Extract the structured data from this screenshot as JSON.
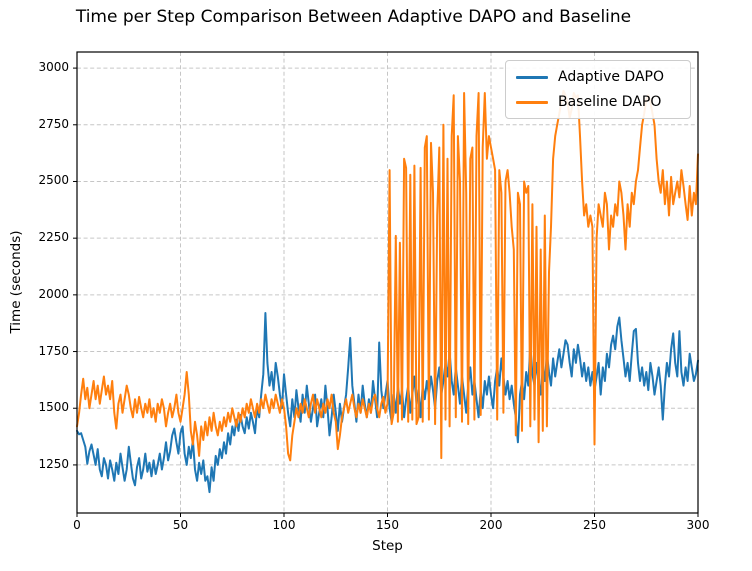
{
  "figure": {
    "title": "Time per Step Comparison Between Adaptive DAPO and Baseline",
    "xlabel": "Step",
    "ylabel": "Time (seconds)"
  },
  "legend": {
    "position": "upper right",
    "items": [
      {
        "label": "Adaptive DAPO",
        "color": "#1f77b4"
      },
      {
        "label": "Baseline DAPO",
        "color": "#ff7f0e"
      }
    ]
  },
  "chart_data": {
    "type": "line",
    "title": "Time per Step Comparison Between Adaptive DAPO and Baseline",
    "xlabel": "Step",
    "ylabel": "Time (seconds)",
    "x_ticks": [
      0,
      50,
      100,
      150,
      200,
      250,
      300
    ],
    "y_ticks": [
      1250,
      1500,
      1750,
      2000,
      2250,
      2500,
      2750,
      3000
    ],
    "xlim": [
      0,
      300
    ],
    "ylim": [
      1038,
      3071
    ],
    "grid": true,
    "grid_style": "dashed",
    "legend_position": "upper right",
    "x_start": 0,
    "x_step": 1,
    "points_per_series": 301,
    "series": [
      {
        "name": "Adaptive DAPO",
        "color": "#1f77b4",
        "values": [
          1400,
          1385,
          1390,
          1360,
          1330,
          1255,
          1310,
          1340,
          1295,
          1250,
          1320,
          1230,
          1200,
          1280,
          1250,
          1190,
          1270,
          1230,
          1180,
          1260,
          1210,
          1300,
          1240,
          1180,
          1230,
          1330,
          1260,
          1190,
          1160,
          1240,
          1280,
          1190,
          1230,
          1300,
          1220,
          1260,
          1200,
          1270,
          1210,
          1250,
          1300,
          1230,
          1280,
          1350,
          1270,
          1310,
          1380,
          1410,
          1350,
          1300,
          1390,
          1420,
          1300,
          1250,
          1330,
          1280,
          1360,
          1230,
          1180,
          1260,
          1210,
          1270,
          1180,
          1200,
          1130,
          1240,
          1180,
          1290,
          1250,
          1320,
          1280,
          1350,
          1300,
          1390,
          1340,
          1420,
          1380,
          1450,
          1400,
          1470,
          1420,
          1390,
          1460,
          1410,
          1480,
          1440,
          1390,
          1500,
          1460,
          1560,
          1650,
          1920,
          1700,
          1600,
          1660,
          1580,
          1700,
          1640,
          1560,
          1500,
          1650,
          1560,
          1480,
          1420,
          1540,
          1460,
          1580,
          1500,
          1440,
          1560,
          1480,
          1600,
          1520,
          1440,
          1500,
          1560,
          1420,
          1480,
          1540,
          1460,
          1600,
          1500,
          1380,
          1460,
          1560,
          1480,
          1400,
          1520,
          1440,
          1500,
          1560,
          1680,
          1810,
          1600,
          1520,
          1440,
          1560,
          1480,
          1600,
          1520,
          1460,
          1540,
          1480,
          1620,
          1540,
          1460,
          1790,
          1580,
          1500,
          1560,
          1620,
          1500,
          1440,
          1560,
          1480,
          1600,
          1520,
          1580,
          1460,
          1540,
          1600,
          1480,
          1560,
          1640,
          1520,
          1580,
          1460,
          1600,
          1540,
          1620,
          1560,
          1640,
          1580,
          1500,
          1620,
          1680,
          1560,
          1620,
          1700,
          1640,
          1750,
          1620,
          1560,
          1680,
          1600,
          1520,
          1640,
          1560,
          1480,
          1600,
          1680,
          1560,
          1620,
          1540,
          1460,
          1580,
          1500,
          1620,
          1560,
          1640,
          1560,
          1500,
          1620,
          1680,
          1600,
          1720,
          1640,
          1560,
          1620,
          1540,
          1600,
          1520,
          1460,
          1350,
          1560,
          1620,
          1540,
          1660,
          1600,
          1780,
          1650,
          1600,
          1700,
          1620,
          1560,
          1680,
          1620,
          1740,
          1660,
          1600,
          1720,
          1640,
          1700,
          1760,
          1680,
          1740,
          1800,
          1780,
          1700,
          1640,
          1760,
          1700,
          1780,
          1720,
          1640,
          1700,
          1620,
          1680,
          1600,
          1660,
          1580,
          1640,
          1700,
          1560,
          1680,
          1620,
          1740,
          1680,
          1780,
          1820,
          1760,
          1860,
          1900,
          1800,
          1720,
          1640,
          1700,
          1620,
          1740,
          1840,
          1850,
          1700,
          1620,
          1680,
          1600,
          1660,
          1580,
          1700,
          1640,
          1560,
          1620,
          1680,
          1600,
          1450,
          1600,
          1700,
          1640,
          1760,
          1830,
          1700,
          1640,
          1840,
          1660,
          1600,
          1680,
          1620,
          1740,
          1680,
          1620,
          1650,
          1710
        ]
      },
      {
        "name": "Baseline DAPO",
        "color": "#ff7f0e",
        "values": [
          1420,
          1480,
          1560,
          1630,
          1540,
          1590,
          1500,
          1560,
          1620,
          1540,
          1600,
          1520,
          1580,
          1640,
          1560,
          1600,
          1540,
          1620,
          1480,
          1410,
          1520,
          1560,
          1480,
          1540,
          1600,
          1560,
          1500,
          1460,
          1540,
          1480,
          1550,
          1500,
          1460,
          1520,
          1480,
          1540,
          1460,
          1500,
          1440,
          1520,
          1480,
          1540,
          1500,
          1420,
          1480,
          1520,
          1460,
          1500,
          1560,
          1480,
          1440,
          1500,
          1560,
          1660,
          1560,
          1400,
          1340,
          1440,
          1380,
          1290,
          1420,
          1360,
          1440,
          1380,
          1460,
          1400,
          1480,
          1420,
          1380,
          1440,
          1400,
          1460,
          1420,
          1480,
          1440,
          1500,
          1460,
          1420,
          1480,
          1440,
          1500,
          1460,
          1520,
          1480,
          1540,
          1500,
          1460,
          1520,
          1480,
          1540,
          1500,
          1560,
          1520,
          1480,
          1540,
          1500,
          1560,
          1520,
          1480,
          1540,
          1500,
          1420,
          1300,
          1270,
          1380,
          1440,
          1500,
          1460,
          1520,
          1480,
          1540,
          1500,
          1460,
          1520,
          1560,
          1480,
          1540,
          1500,
          1460,
          1520,
          1480,
          1540,
          1500,
          1560,
          1480,
          1440,
          1320,
          1380,
          1460,
          1500,
          1540,
          1480,
          1520,
          1560,
          1500,
          1460,
          1520,
          1480,
          1540,
          1500,
          1460,
          1520,
          1480,
          1540,
          1560,
          1500,
          1460,
          1520,
          1550,
          1480,
          1520,
          2550,
          1430,
          1480,
          2260,
          1440,
          2230,
          1450,
          2600,
          2560,
          1440,
          2530,
          1450,
          2570,
          1430,
          1460,
          2560,
          1440,
          2650,
          2700,
          1450,
          2670,
          2450,
          1430,
          2350,
          2650,
          1280,
          2750,
          1450,
          2600,
          1420,
          2700,
          2880,
          1460,
          2700,
          2500,
          1440,
          2890,
          2450,
          1430,
          2600,
          2650,
          1450,
          2700,
          2890,
          1470,
          2650,
          2890,
          2600,
          2700,
          2650,
          2600,
          2550,
          1450,
          2550,
          2450,
          1480,
          2500,
          2550,
          2450,
          2300,
          2200,
          1380,
          2450,
          2400,
          1400,
          2500,
          2450,
          2480,
          1420,
          2400,
          1450,
          2300,
          1350,
          2200,
          1400,
          2350,
          1420,
          2100,
          2300,
          2600,
          2700,
          2750,
          2800,
          2850,
          2900,
          2880,
          2850,
          2780,
          2820,
          2890,
          2870,
          2880,
          2700,
          2500,
          2350,
          2400,
          2300,
          2350,
          2300,
          1340,
          2250,
          2400,
          2350,
          2300,
          2450,
          2400,
          2200,
          2350,
          2300,
          2400,
          2350,
          2500,
          2450,
          2350,
          2200,
          2400,
          2300,
          2450,
          2400,
          2500,
          2550,
          2650,
          2750,
          2800,
          2860,
          2880,
          2850,
          2800,
          2750,
          2600,
          2500,
          2450,
          2550,
          2400,
          2500,
          2350,
          2520,
          2400,
          2450,
          2500,
          2430,
          2550,
          2480,
          2400,
          2330,
          2480,
          2350,
          2450,
          2400,
          2620
        ]
      }
    ]
  }
}
